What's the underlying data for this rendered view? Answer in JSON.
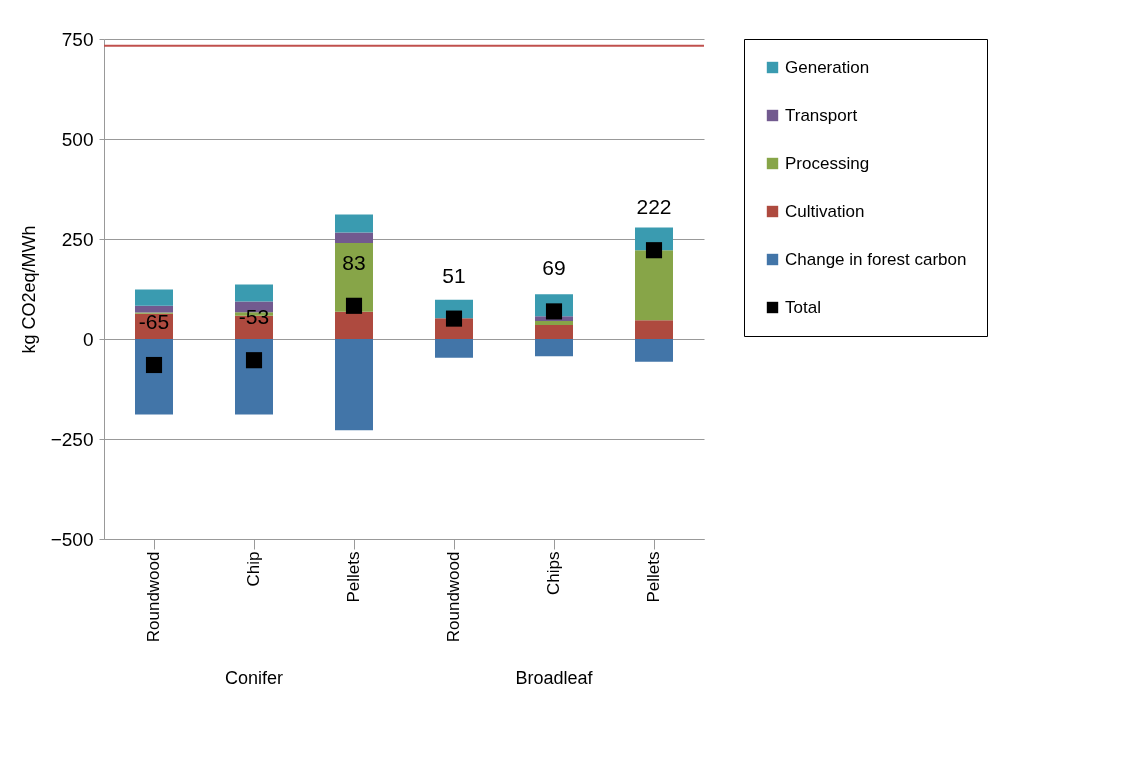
{
  "chart_data": {
    "type": "bar",
    "stacked": true,
    "ylabel": "kg CO2eq/MWh",
    "categories": [
      "Roundwood",
      "Chip",
      "Pellets",
      "Roundwood",
      "Chips",
      "Pellets"
    ],
    "series": [
      {
        "name": "Change in forest carbon",
        "color": "#4275a8",
        "values": [
          -189,
          -189,
          -228,
          -47,
          -43,
          -57
        ]
      },
      {
        "name": "Cultivation",
        "color": "#ae4a3f",
        "values": [
          63,
          58,
          68,
          52,
          35,
          47
        ]
      },
      {
        "name": "Processing",
        "color": "#87a548",
        "values": [
          3,
          9,
          172,
          0,
          10,
          175
        ]
      },
      {
        "name": "Transport",
        "color": "#725a8f",
        "values": [
          17,
          27,
          26,
          0,
          12,
          0
        ]
      },
      {
        "name": "Generation",
        "color": "#3a9bb0",
        "values": [
          41,
          42,
          45,
          46,
          55,
          57
        ]
      },
      {
        "name": "Total",
        "type": "scatter",
        "marker": "square",
        "color": "#000000",
        "values": [
          -65,
          -53,
          83,
          51,
          69,
          222
        ],
        "value_labels": [
          "-65",
          "-53",
          "83",
          "51",
          "69",
          "222"
        ]
      }
    ],
    "ylim": [
      -500,
      750
    ],
    "yticks": [
      -500,
      -250,
      0,
      250,
      500,
      750
    ],
    "grid": "y",
    "legend": "right",
    "ref_lines": [
      {
        "axis": "y",
        "value": 733,
        "color": "#c0504d"
      }
    ],
    "annotations": [
      "Conifer",
      "Broadleaf"
    ]
  }
}
